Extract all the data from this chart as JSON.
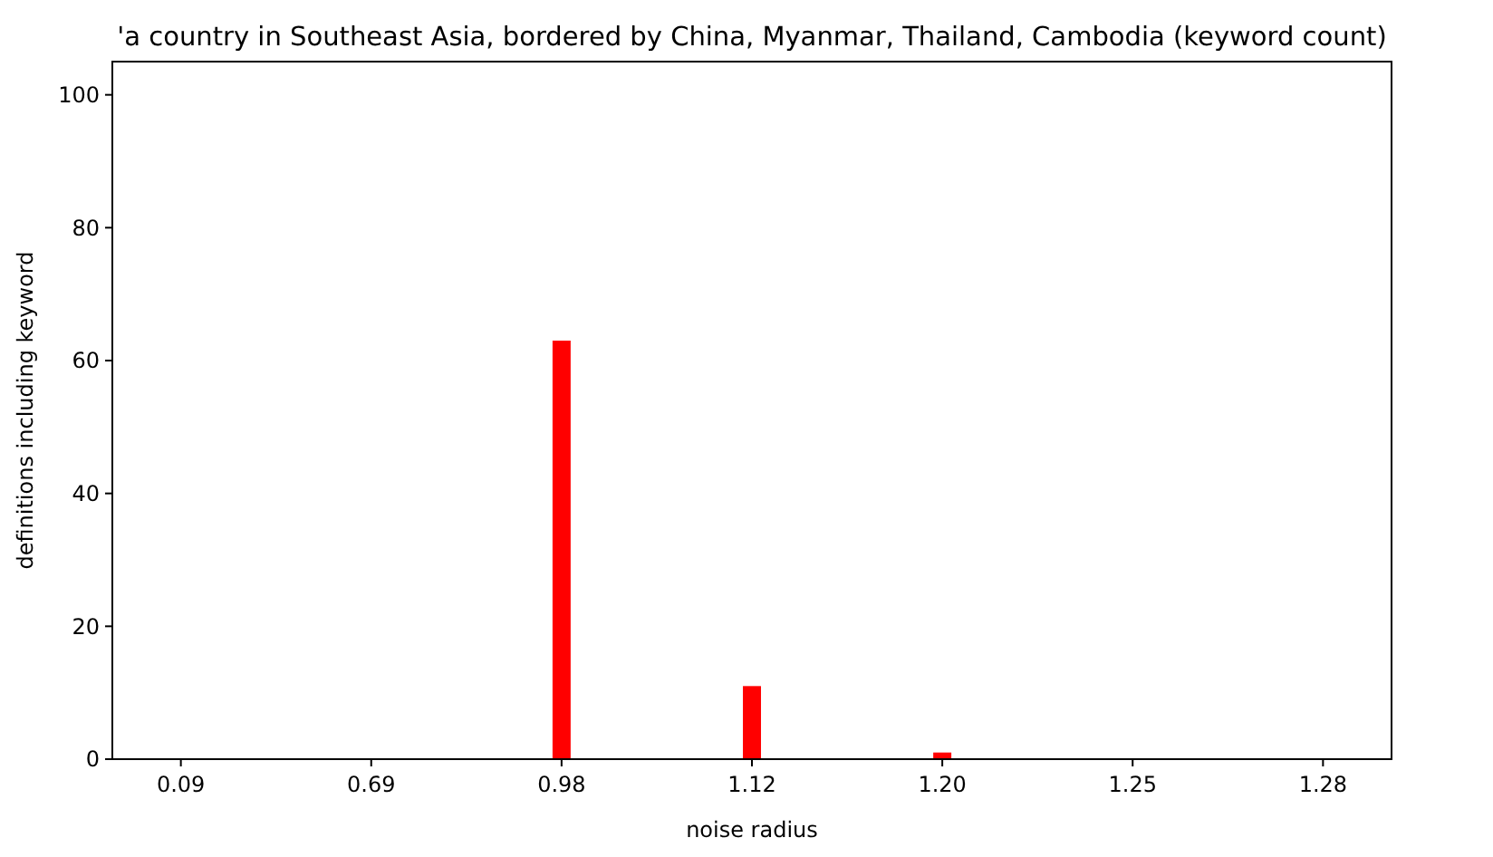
{
  "chart_data": {
    "type": "bar",
    "title": "'a country in Southeast Asia, bordered by China, Myanmar, Thailand, Cambodia (keyword count)",
    "xlabel": "noise radius",
    "ylabel": "definitions including keyword",
    "categories": [
      "0.09",
      "0.69",
      "0.98",
      "1.12",
      "1.20",
      "1.25",
      "1.28"
    ],
    "values": [
      0,
      0,
      63,
      11,
      1,
      0,
      0
    ],
    "color": "#ff0000",
    "ylim": [
      0,
      105
    ],
    "yticks": [
      0,
      20,
      40,
      60,
      80,
      100
    ],
    "grid": false
  }
}
